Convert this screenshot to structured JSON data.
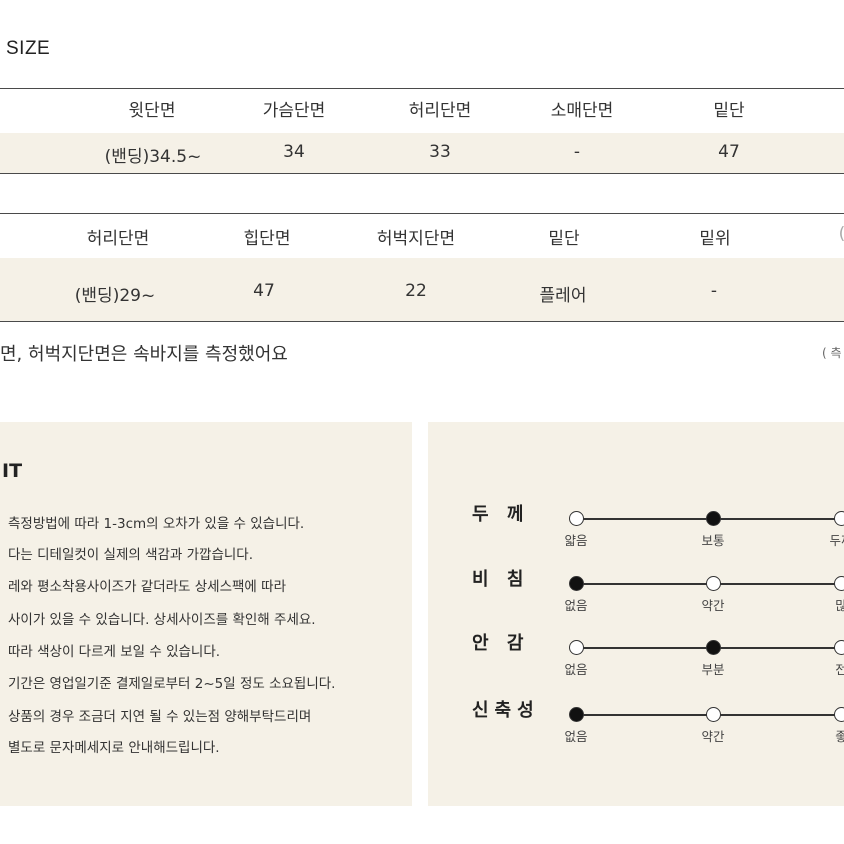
{
  "size_title": "SIZE",
  "top_table": {
    "headers": [
      "윗단면",
      "가슴단면",
      "허리단면",
      "소매단면",
      "밑단"
    ],
    "values": [
      "(밴딩)34.5~",
      "34",
      "33",
      "-",
      "47"
    ]
  },
  "bottom_table": {
    "headers": [
      "허리단면",
      "힙단면",
      "허벅지단면",
      "밑단",
      "밑위",
      "("
    ],
    "values": [
      "(밴딩)29~",
      "47",
      "22",
      "플레어",
      "-"
    ]
  },
  "measure_note": "면, 허벅지단면은 속바지를 측정했어요",
  "measure_note_right": "( 측",
  "notice": {
    "title": "IT",
    "lines": [
      "측정방법에 따라 1-3cm의 오차가 있을 수 있습니다.",
      "다는 디테일컷이 실제의 색감과 가깝습니다.",
      "레와 평소착용사이즈가 같더라도 상세스팩에 따라",
      "사이가 있을 수 있습니다. 상세사이즈를 확인해 주세요.",
      "따라 색상이 다르게 보일 수 있습니다.",
      "기간은 영업일기준 결제일로부터 2~5일 정도 소요됩니다.",
      "상품의 경우 조금더 지연 될 수 있는점 양해부탁드리며",
      "별도로 문자메세지로 안내해드립니다."
    ]
  },
  "fit": {
    "rows": [
      {
        "label": "두 께",
        "options": [
          "얇음",
          "보통",
          "두꺼"
        ],
        "selected_index": 1
      },
      {
        "label": "비 침",
        "options": [
          "없음",
          "약간",
          "많"
        ],
        "selected_index": 0
      },
      {
        "label": "안 감",
        "options": [
          "없음",
          "부분",
          "전"
        ],
        "selected_index": 1
      },
      {
        "label": "신축성",
        "options": [
          "없음",
          "약간",
          "좋"
        ],
        "selected_index": 0
      }
    ]
  }
}
